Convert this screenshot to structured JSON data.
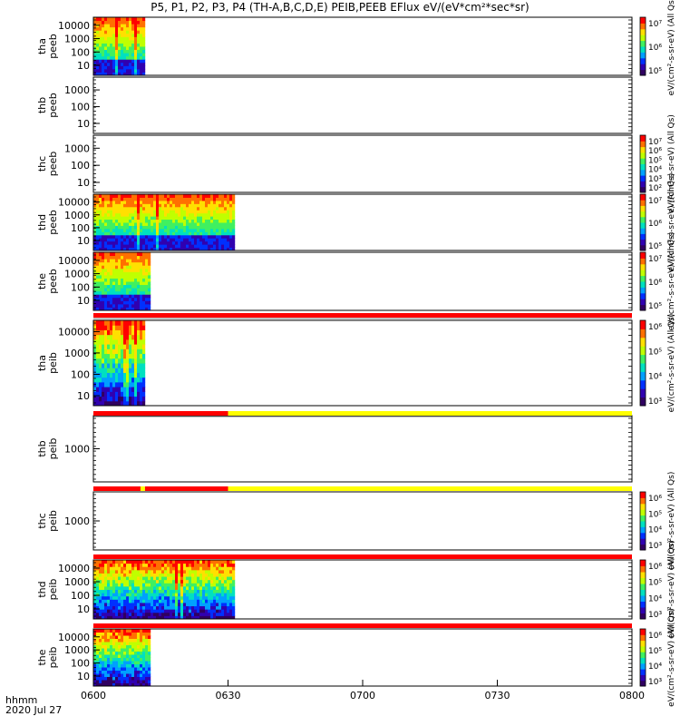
{
  "chart_data": {
    "type": "heatmap",
    "title": "P5, P1, P2, P3, P4 (TH-A,B,C,D,E) PEIB,PEEB EFlux eV/(eV*cm²*sec*sr)",
    "x_axis": {
      "label_line1": "hhmm",
      "label_line2": "2020 Jul 27",
      "range": [
        "0600",
        "0800"
      ],
      "range_minutes": [
        0,
        120
      ],
      "ticks": [
        {
          "minute": 0,
          "label": "0600"
        },
        {
          "minute": 30,
          "label": "0630"
        },
        {
          "minute": 60,
          "label": "0700"
        },
        {
          "minute": 90,
          "label": "0730"
        },
        {
          "minute": 120,
          "label": "0800"
        }
      ]
    },
    "colorscale": [
      "#300060",
      "#3000b0",
      "#0030ff",
      "#00a0ff",
      "#00e0c0",
      "#40f060",
      "#c0ff00",
      "#ffe000",
      "#ff7000",
      "#ff0000"
    ],
    "flag_colors": {
      "red": "#ff0000",
      "yellow": "#ffff00"
    },
    "panels": [
      {
        "id": "tha-peeb",
        "label1": "tha",
        "label2": "peeb",
        "yticks": [
          "10",
          "100",
          "1000",
          "10000"
        ],
        "data_end_min": 11.5,
        "kind": "electron",
        "colorbar": {
          "ticks": [
            "10⁵",
            "10⁶",
            "10⁷"
          ],
          "label": "eV/(cm²-s-sr-eV) (All Qs)"
        }
      },
      {
        "id": "thb-peeb",
        "label1": "thb",
        "label2": "peeb",
        "yticks": [
          "10",
          "100",
          "1000"
        ],
        "data_end_min": null,
        "kind": "electron",
        "colorbar": null
      },
      {
        "id": "thc-peeb",
        "label1": "thc",
        "label2": "peeb",
        "yticks": [
          "10",
          "100",
          "1000"
        ],
        "data_end_min": null,
        "kind": "electron",
        "colorbar": {
          "ticks": [
            "10²",
            "10³",
            "10⁴",
            "10⁵",
            "10⁶",
            "10⁷"
          ],
          "label": "eV/(cm²-s-sr-eV) (All Qs)"
        }
      },
      {
        "id": "thd-peeb",
        "label1": "thd",
        "label2": "peeb",
        "yticks": [
          "10",
          "100",
          "1000",
          "10000"
        ],
        "data_end_min": 31.5,
        "kind": "electron",
        "colorbar": {
          "ticks": [
            "10⁵",
            "10⁶",
            "10⁷"
          ],
          "label": "eV/(cm²-s-sr-eV) (All Qs)"
        }
      },
      {
        "id": "the-peeb",
        "label1": "the",
        "label2": "peeb",
        "yticks": [
          "10",
          "100",
          "1000",
          "10000"
        ],
        "data_end_min": 12.5,
        "kind": "electron",
        "colorbar": {
          "ticks": [
            "10⁵",
            "10⁶",
            "10⁷"
          ],
          "label": "eV/(cm²-s-sr-eV) (All Qs)"
        }
      },
      {
        "id": "tha-peib",
        "label1": "tha",
        "label2": "peib",
        "yticks": [
          "10",
          "100",
          "1000",
          "10000"
        ],
        "data_end_min": 11.5,
        "kind": "ion",
        "colorbar": {
          "ticks": [
            "10³",
            "10⁴",
            "10⁵",
            "10⁶"
          ],
          "label": "eV/(cm²-s-sr-eV) (All Qs)"
        }
      },
      {
        "id": "thb-peib",
        "label1": "thb",
        "label2": "peib",
        "yticks": [
          "1000"
        ],
        "data_end_min": null,
        "kind": "ion",
        "colorbar": null
      },
      {
        "id": "thc-peib",
        "label1": "thc",
        "label2": "peib",
        "yticks": [
          "1000"
        ],
        "data_end_min": null,
        "kind": "ion",
        "colorbar": {
          "ticks": [
            "10³",
            "10⁴",
            "10⁵",
            "10⁶"
          ],
          "label": "eV/(cm²-s-sr-eV) (All Qs)"
        }
      },
      {
        "id": "thd-peib",
        "label1": "thd",
        "label2": "peib",
        "yticks": [
          "10",
          "100",
          "1000",
          "10000"
        ],
        "data_end_min": 31.5,
        "kind": "ion",
        "colorbar": {
          "ticks": [
            "10³",
            "10⁴",
            "10⁵",
            "10⁶"
          ],
          "label": "eV/(cm²-s-sr-eV) (All Qs)"
        }
      },
      {
        "id": "the-peib",
        "label1": "the",
        "label2": "peib",
        "yticks": [
          "10",
          "100",
          "1000",
          "10000"
        ],
        "data_end_min": 12.5,
        "kind": "ion",
        "colorbar": {
          "ticks": [
            "10³",
            "10⁴",
            "10⁵",
            "10⁶"
          ],
          "label": "eV/(cm²-s-sr-eV) (All Qs)"
        }
      }
    ],
    "flag_bars": [
      {
        "after_panel": "the-peeb",
        "segments": [
          {
            "from": 0,
            "to": 120,
            "color": "red"
          }
        ]
      },
      {
        "after_panel": "tha-peib",
        "segments": [
          {
            "from": 0,
            "to": 30,
            "color": "red"
          },
          {
            "from": 30,
            "to": 120,
            "color": "yellow"
          }
        ]
      },
      {
        "after_panel": "thb-peib",
        "segments": [
          {
            "from": 0,
            "to": 10.5,
            "color": "red"
          },
          {
            "from": 10.5,
            "to": 11.5,
            "color": "yellow"
          },
          {
            "from": 11.5,
            "to": 30,
            "color": "red"
          },
          {
            "from": 30,
            "to": 120,
            "color": "yellow"
          }
        ]
      },
      {
        "after_panel": "thc-peib",
        "segments": [
          {
            "from": 0,
            "to": 120,
            "color": "red"
          }
        ]
      },
      {
        "after_panel": "thd-peib",
        "segments": [
          {
            "from": 0,
            "to": 120,
            "color": "red"
          }
        ]
      }
    ]
  }
}
